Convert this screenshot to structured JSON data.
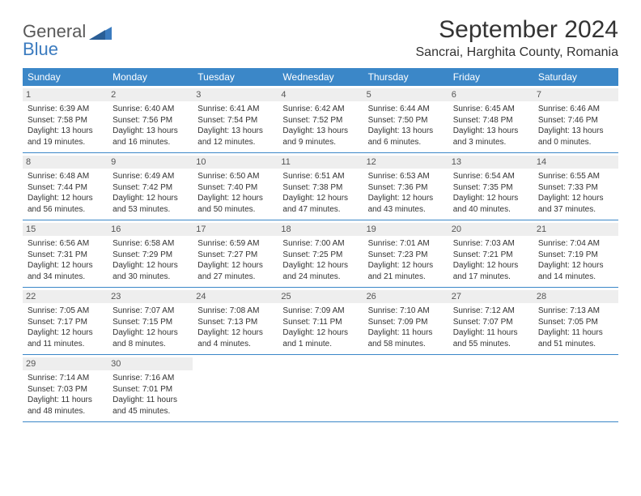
{
  "logo": {
    "word1": "General",
    "word2": "Blue"
  },
  "title": "September 2024",
  "location": "Sancrai, Harghita County, Romania",
  "style": {
    "accent": "#3b87c8",
    "logo_gray": "#595959",
    "logo_blue": "#3b7bbf",
    "daynum_bg": "#eeeeee",
    "text": "#333333",
    "title_fontsize": 30,
    "location_fontsize": 16,
    "weekday_fontsize": 12,
    "daynum_fontsize": 11,
    "body_fontsize": 10
  },
  "weekdays": [
    "Sunday",
    "Monday",
    "Tuesday",
    "Wednesday",
    "Thursday",
    "Friday",
    "Saturday"
  ],
  "weeks": [
    [
      {
        "n": "1",
        "sr": "Sunrise: 6:39 AM",
        "ss": "Sunset: 7:58 PM",
        "dl1": "Daylight: 13 hours",
        "dl2": "and 19 minutes."
      },
      {
        "n": "2",
        "sr": "Sunrise: 6:40 AM",
        "ss": "Sunset: 7:56 PM",
        "dl1": "Daylight: 13 hours",
        "dl2": "and 16 minutes."
      },
      {
        "n": "3",
        "sr": "Sunrise: 6:41 AM",
        "ss": "Sunset: 7:54 PM",
        "dl1": "Daylight: 13 hours",
        "dl2": "and 12 minutes."
      },
      {
        "n": "4",
        "sr": "Sunrise: 6:42 AM",
        "ss": "Sunset: 7:52 PM",
        "dl1": "Daylight: 13 hours",
        "dl2": "and 9 minutes."
      },
      {
        "n": "5",
        "sr": "Sunrise: 6:44 AM",
        "ss": "Sunset: 7:50 PM",
        "dl1": "Daylight: 13 hours",
        "dl2": "and 6 minutes."
      },
      {
        "n": "6",
        "sr": "Sunrise: 6:45 AM",
        "ss": "Sunset: 7:48 PM",
        "dl1": "Daylight: 13 hours",
        "dl2": "and 3 minutes."
      },
      {
        "n": "7",
        "sr": "Sunrise: 6:46 AM",
        "ss": "Sunset: 7:46 PM",
        "dl1": "Daylight: 13 hours",
        "dl2": "and 0 minutes."
      }
    ],
    [
      {
        "n": "8",
        "sr": "Sunrise: 6:48 AM",
        "ss": "Sunset: 7:44 PM",
        "dl1": "Daylight: 12 hours",
        "dl2": "and 56 minutes."
      },
      {
        "n": "9",
        "sr": "Sunrise: 6:49 AM",
        "ss": "Sunset: 7:42 PM",
        "dl1": "Daylight: 12 hours",
        "dl2": "and 53 minutes."
      },
      {
        "n": "10",
        "sr": "Sunrise: 6:50 AM",
        "ss": "Sunset: 7:40 PM",
        "dl1": "Daylight: 12 hours",
        "dl2": "and 50 minutes."
      },
      {
        "n": "11",
        "sr": "Sunrise: 6:51 AM",
        "ss": "Sunset: 7:38 PM",
        "dl1": "Daylight: 12 hours",
        "dl2": "and 47 minutes."
      },
      {
        "n": "12",
        "sr": "Sunrise: 6:53 AM",
        "ss": "Sunset: 7:36 PM",
        "dl1": "Daylight: 12 hours",
        "dl2": "and 43 minutes."
      },
      {
        "n": "13",
        "sr": "Sunrise: 6:54 AM",
        "ss": "Sunset: 7:35 PM",
        "dl1": "Daylight: 12 hours",
        "dl2": "and 40 minutes."
      },
      {
        "n": "14",
        "sr": "Sunrise: 6:55 AM",
        "ss": "Sunset: 7:33 PM",
        "dl1": "Daylight: 12 hours",
        "dl2": "and 37 minutes."
      }
    ],
    [
      {
        "n": "15",
        "sr": "Sunrise: 6:56 AM",
        "ss": "Sunset: 7:31 PM",
        "dl1": "Daylight: 12 hours",
        "dl2": "and 34 minutes."
      },
      {
        "n": "16",
        "sr": "Sunrise: 6:58 AM",
        "ss": "Sunset: 7:29 PM",
        "dl1": "Daylight: 12 hours",
        "dl2": "and 30 minutes."
      },
      {
        "n": "17",
        "sr": "Sunrise: 6:59 AM",
        "ss": "Sunset: 7:27 PM",
        "dl1": "Daylight: 12 hours",
        "dl2": "and 27 minutes."
      },
      {
        "n": "18",
        "sr": "Sunrise: 7:00 AM",
        "ss": "Sunset: 7:25 PM",
        "dl1": "Daylight: 12 hours",
        "dl2": "and 24 minutes."
      },
      {
        "n": "19",
        "sr": "Sunrise: 7:01 AM",
        "ss": "Sunset: 7:23 PM",
        "dl1": "Daylight: 12 hours",
        "dl2": "and 21 minutes."
      },
      {
        "n": "20",
        "sr": "Sunrise: 7:03 AM",
        "ss": "Sunset: 7:21 PM",
        "dl1": "Daylight: 12 hours",
        "dl2": "and 17 minutes."
      },
      {
        "n": "21",
        "sr": "Sunrise: 7:04 AM",
        "ss": "Sunset: 7:19 PM",
        "dl1": "Daylight: 12 hours",
        "dl2": "and 14 minutes."
      }
    ],
    [
      {
        "n": "22",
        "sr": "Sunrise: 7:05 AM",
        "ss": "Sunset: 7:17 PM",
        "dl1": "Daylight: 12 hours",
        "dl2": "and 11 minutes."
      },
      {
        "n": "23",
        "sr": "Sunrise: 7:07 AM",
        "ss": "Sunset: 7:15 PM",
        "dl1": "Daylight: 12 hours",
        "dl2": "and 8 minutes."
      },
      {
        "n": "24",
        "sr": "Sunrise: 7:08 AM",
        "ss": "Sunset: 7:13 PM",
        "dl1": "Daylight: 12 hours",
        "dl2": "and 4 minutes."
      },
      {
        "n": "25",
        "sr": "Sunrise: 7:09 AM",
        "ss": "Sunset: 7:11 PM",
        "dl1": "Daylight: 12 hours",
        "dl2": "and 1 minute."
      },
      {
        "n": "26",
        "sr": "Sunrise: 7:10 AM",
        "ss": "Sunset: 7:09 PM",
        "dl1": "Daylight: 11 hours",
        "dl2": "and 58 minutes."
      },
      {
        "n": "27",
        "sr": "Sunrise: 7:12 AM",
        "ss": "Sunset: 7:07 PM",
        "dl1": "Daylight: 11 hours",
        "dl2": "and 55 minutes."
      },
      {
        "n": "28",
        "sr": "Sunrise: 7:13 AM",
        "ss": "Sunset: 7:05 PM",
        "dl1": "Daylight: 11 hours",
        "dl2": "and 51 minutes."
      }
    ],
    [
      {
        "n": "29",
        "sr": "Sunrise: 7:14 AM",
        "ss": "Sunset: 7:03 PM",
        "dl1": "Daylight: 11 hours",
        "dl2": "and 48 minutes."
      },
      {
        "n": "30",
        "sr": "Sunrise: 7:16 AM",
        "ss": "Sunset: 7:01 PM",
        "dl1": "Daylight: 11 hours",
        "dl2": "and 45 minutes."
      },
      null,
      null,
      null,
      null,
      null
    ]
  ]
}
